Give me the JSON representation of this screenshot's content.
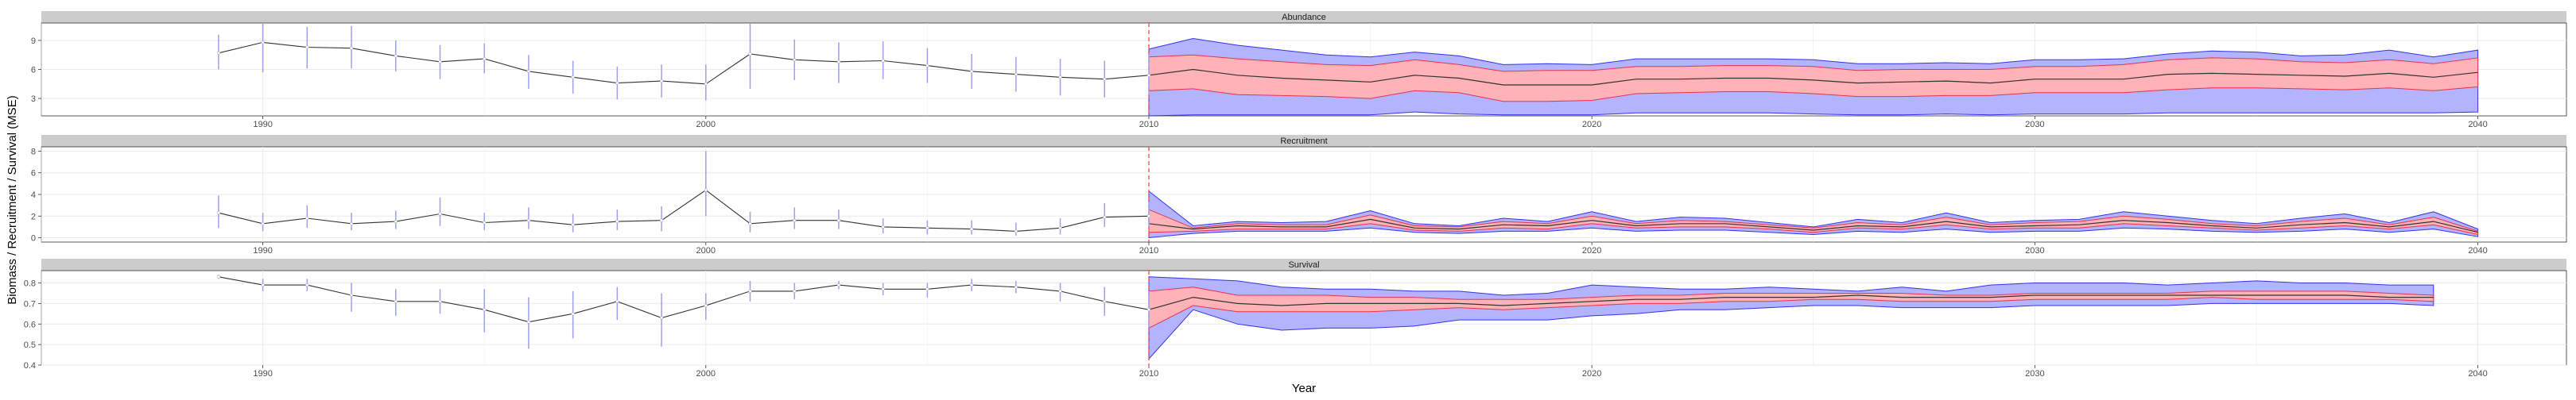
{
  "chart_data": {
    "type": "line",
    "xlabel": "Year",
    "ylabel": "Biomass / Recruitment / Survival (MSE)",
    "xlim": [
      1985,
      2042
    ],
    "xticks": [
      1990,
      2000,
      2010,
      2020,
      2030,
      2040
    ],
    "projection_start": 2010,
    "colors": {
      "strip": "#cccccc",
      "grid": "#ebebeb",
      "outer_band": "#b3b3ff",
      "outer_band_stroke": "#3333ee",
      "inner_band": "#ffb3b8",
      "inner_band_stroke": "#e8334a",
      "median": "#333333",
      "error_bar": "#9f9ff0",
      "vline": "#ff4444"
    },
    "panels": [
      {
        "name": "Abundance",
        "ylim": [
          1.2,
          10.8
        ],
        "yticks": [
          3,
          6,
          9
        ],
        "ytick_labels": [
          "3",
          "6",
          "9"
        ],
        "observed": {
          "years": [
            1989,
            1990,
            1991,
            1992,
            1993,
            1994,
            1995,
            1996,
            1997,
            1998,
            1999,
            2000,
            2001,
            2002,
            2003,
            2004,
            2005,
            2006,
            2007,
            2008,
            2009,
            2010
          ],
          "values": [
            7.7,
            8.8,
            8.3,
            8.2,
            7.4,
            6.8,
            7.1,
            5.8,
            5.2,
            4.6,
            4.8,
            4.5,
            7.6,
            7.0,
            6.8,
            6.9,
            6.4,
            5.8,
            5.5,
            5.2,
            5.0,
            5.4
          ],
          "lower": [
            6.0,
            5.7,
            6.1,
            6.1,
            5.8,
            5.0,
            5.6,
            4.0,
            3.5,
            2.9,
            3.1,
            2.8,
            4.0,
            4.9,
            4.6,
            5.0,
            4.6,
            4.0,
            3.7,
            3.3,
            3.1,
            3.4
          ],
          "upper": [
            9.6,
            10.8,
            10.4,
            10.5,
            9.0,
            8.5,
            8.7,
            7.5,
            6.9,
            6.3,
            6.5,
            6.5,
            10.8,
            9.1,
            8.8,
            8.9,
            8.2,
            7.6,
            7.3,
            7.1,
            6.9,
            7.6
          ]
        },
        "projection": {
          "years": [
            2010,
            2011,
            2012,
            2013,
            2014,
            2015,
            2016,
            2017,
            2018,
            2019,
            2020,
            2021,
            2022,
            2023,
            2024,
            2025,
            2026,
            2027,
            2028,
            2029,
            2030,
            2031,
            2032,
            2033,
            2034,
            2035,
            2036,
            2037,
            2038,
            2039,
            2040
          ],
          "outer_lower": [
            1.2,
            1.3,
            1.3,
            1.3,
            1.3,
            1.3,
            1.6,
            1.4,
            1.3,
            1.3,
            1.3,
            1.5,
            1.5,
            1.5,
            1.5,
            1.4,
            1.3,
            1.3,
            1.4,
            1.3,
            1.4,
            1.4,
            1.4,
            1.5,
            1.5,
            1.5,
            1.5,
            1.5,
            1.5,
            1.5,
            1.6
          ],
          "inner_lower": [
            3.8,
            4.0,
            3.4,
            3.3,
            3.2,
            3.0,
            3.8,
            3.6,
            2.7,
            2.7,
            2.8,
            3.5,
            3.6,
            3.7,
            3.7,
            3.5,
            3.2,
            3.2,
            3.3,
            3.3,
            3.6,
            3.6,
            3.6,
            3.9,
            4.1,
            4.1,
            4.0,
            3.9,
            4.1,
            3.8,
            4.2
          ],
          "median": [
            5.4,
            6.0,
            5.4,
            5.1,
            4.9,
            4.7,
            5.4,
            5.1,
            4.4,
            4.4,
            4.4,
            5.0,
            5.0,
            5.1,
            5.1,
            4.9,
            4.6,
            4.7,
            4.8,
            4.6,
            5.0,
            5.0,
            5.0,
            5.5,
            5.6,
            5.5,
            5.4,
            5.3,
            5.6,
            5.2,
            5.7
          ],
          "inner_upper": [
            7.3,
            7.5,
            7.1,
            6.8,
            6.5,
            6.4,
            7.0,
            6.5,
            5.8,
            5.9,
            5.9,
            6.3,
            6.3,
            6.4,
            6.4,
            6.3,
            5.9,
            6.0,
            6.0,
            6.0,
            6.3,
            6.3,
            6.5,
            7.0,
            7.2,
            7.1,
            6.8,
            6.7,
            7.0,
            6.6,
            7.2
          ],
          "outer_upper": [
            8.1,
            9.2,
            8.5,
            8.0,
            7.5,
            7.3,
            7.8,
            7.4,
            6.5,
            6.6,
            6.5,
            7.1,
            7.1,
            7.1,
            7.1,
            7.0,
            6.6,
            6.6,
            6.7,
            6.6,
            7.0,
            7.0,
            7.1,
            7.6,
            7.9,
            7.8,
            7.4,
            7.5,
            8.0,
            7.3,
            8.0
          ]
        }
      },
      {
        "name": "Recruitment",
        "ylim": [
          -0.4,
          8.4
        ],
        "yticks": [
          0,
          2,
          4,
          6,
          8
        ],
        "ytick_labels": [
          "0",
          "2",
          "4",
          "6",
          "8"
        ],
        "observed": {
          "years": [
            1989,
            1990,
            1991,
            1992,
            1993,
            1994,
            1995,
            1996,
            1997,
            1998,
            1999,
            2000,
            2001,
            2002,
            2003,
            2004,
            2005,
            2006,
            2007,
            2008,
            2009,
            2010
          ],
          "values": [
            2.3,
            1.3,
            1.8,
            1.3,
            1.5,
            2.2,
            1.4,
            1.6,
            1.2,
            1.5,
            1.6,
            4.4,
            1.3,
            1.6,
            1.6,
            1.0,
            0.9,
            0.8,
            0.6,
            0.9,
            1.9,
            2.0
          ],
          "lower": [
            0.9,
            0.6,
            0.9,
            0.7,
            0.8,
            1.1,
            0.7,
            0.8,
            0.5,
            0.7,
            0.6,
            2.0,
            0.5,
            0.8,
            0.8,
            0.4,
            0.3,
            0.3,
            0.2,
            0.3,
            1.0,
            1.0
          ],
          "upper": [
            3.9,
            2.3,
            3.0,
            2.3,
            2.5,
            3.7,
            2.3,
            2.8,
            2.2,
            2.6,
            2.9,
            8.0,
            2.4,
            2.8,
            2.6,
            1.8,
            1.6,
            1.6,
            1.4,
            1.8,
            3.2,
            3.3
          ]
        },
        "projection": {
          "years": [
            2010,
            2011,
            2012,
            2013,
            2014,
            2015,
            2016,
            2017,
            2018,
            2019,
            2020,
            2021,
            2022,
            2023,
            2024,
            2025,
            2026,
            2027,
            2028,
            2029,
            2030,
            2031,
            2032,
            2033,
            2034,
            2035,
            2036,
            2037,
            2038,
            2039,
            2040
          ],
          "outer_lower": [
            0.0,
            0.4,
            0.6,
            0.6,
            0.6,
            0.9,
            0.5,
            0.4,
            0.6,
            0.6,
            0.9,
            0.6,
            0.7,
            0.7,
            0.5,
            0.3,
            0.6,
            0.5,
            0.8,
            0.5,
            0.6,
            0.6,
            0.9,
            0.8,
            0.6,
            0.5,
            0.6,
            0.8,
            0.5,
            0.8,
            0.1
          ],
          "inner_lower": [
            0.5,
            0.6,
            0.8,
            0.8,
            0.8,
            1.3,
            0.7,
            0.6,
            0.9,
            0.8,
            1.3,
            0.9,
            1.0,
            1.0,
            0.8,
            0.5,
            0.9,
            0.8,
            1.2,
            0.8,
            0.9,
            0.9,
            1.3,
            1.1,
            0.9,
            0.7,
            0.9,
            1.1,
            0.8,
            1.2,
            0.3
          ],
          "median": [
            1.3,
            0.8,
            1.1,
            1.0,
            1.0,
            1.7,
            0.9,
            0.8,
            1.2,
            1.1,
            1.6,
            1.1,
            1.3,
            1.3,
            1.0,
            0.7,
            1.1,
            1.0,
            1.5,
            1.0,
            1.1,
            1.2,
            1.6,
            1.4,
            1.1,
            0.9,
            1.2,
            1.4,
            1.0,
            1.5,
            0.5
          ],
          "inner_upper": [
            2.6,
            0.9,
            1.3,
            1.2,
            1.2,
            2.1,
            1.1,
            1.0,
            1.5,
            1.3,
            2.0,
            1.3,
            1.6,
            1.5,
            1.2,
            0.9,
            1.4,
            1.2,
            1.9,
            1.2,
            1.4,
            1.5,
            2.0,
            1.7,
            1.3,
            1.1,
            1.5,
            1.8,
            1.2,
            1.9,
            0.6
          ],
          "outer_upper": [
            4.3,
            1.1,
            1.5,
            1.4,
            1.5,
            2.5,
            1.3,
            1.1,
            1.8,
            1.5,
            2.4,
            1.5,
            1.9,
            1.8,
            1.4,
            1.0,
            1.7,
            1.4,
            2.3,
            1.4,
            1.6,
            1.7,
            2.4,
            2.0,
            1.6,
            1.3,
            1.8,
            2.2,
            1.4,
            2.4,
            0.8
          ]
        }
      },
      {
        "name": "Survival",
        "ylim": [
          0.4,
          0.86
        ],
        "yticks": [
          0.4,
          0.5,
          0.6,
          0.7,
          0.8
        ],
        "ytick_labels": [
          "0.4",
          "0.5",
          "0.6",
          "0.7",
          "0.8"
        ],
        "observed": {
          "years": [
            1989,
            1990,
            1991,
            1992,
            1993,
            1994,
            1995,
            1996,
            1997,
            1998,
            1999,
            2000,
            2001,
            2002,
            2003,
            2004,
            2005,
            2006,
            2007,
            2008,
            2009,
            2010
          ],
          "values": [
            0.83,
            0.79,
            0.79,
            0.74,
            0.71,
            0.71,
            0.67,
            0.61,
            0.65,
            0.71,
            0.63,
            0.69,
            0.76,
            0.76,
            0.79,
            0.77,
            0.77,
            0.79,
            0.78,
            0.76,
            0.71,
            0.67
          ],
          "lower": [
            0.82,
            0.76,
            0.76,
            0.66,
            0.64,
            0.65,
            0.56,
            0.48,
            0.53,
            0.62,
            0.49,
            0.62,
            0.71,
            0.72,
            0.77,
            0.74,
            0.73,
            0.76,
            0.75,
            0.71,
            0.64,
            0.58
          ],
          "upper": [
            0.84,
            0.82,
            0.82,
            0.8,
            0.77,
            0.77,
            0.77,
            0.73,
            0.76,
            0.78,
            0.75,
            0.75,
            0.81,
            0.8,
            0.81,
            0.8,
            0.8,
            0.82,
            0.81,
            0.8,
            0.78,
            0.76
          ]
        },
        "projection": {
          "years": [
            2010,
            2011,
            2012,
            2013,
            2014,
            2015,
            2016,
            2017,
            2018,
            2019,
            2020,
            2021,
            2022,
            2023,
            2024,
            2025,
            2026,
            2027,
            2028,
            2029,
            2030,
            2031,
            2032,
            2033,
            2034,
            2035,
            2036,
            2037,
            2038,
            2039
          ],
          "outer_lower": [
            0.43,
            0.67,
            0.6,
            0.57,
            0.58,
            0.58,
            0.59,
            0.62,
            0.62,
            0.62,
            0.64,
            0.65,
            0.67,
            0.67,
            0.68,
            0.69,
            0.69,
            0.68,
            0.68,
            0.68,
            0.69,
            0.69,
            0.69,
            0.69,
            0.7,
            0.7,
            0.7,
            0.7,
            0.7,
            0.69
          ],
          "inner_lower": [
            0.58,
            0.69,
            0.66,
            0.66,
            0.66,
            0.66,
            0.67,
            0.68,
            0.67,
            0.68,
            0.69,
            0.7,
            0.7,
            0.71,
            0.71,
            0.72,
            0.72,
            0.71,
            0.71,
            0.71,
            0.72,
            0.72,
            0.72,
            0.72,
            0.73,
            0.72,
            0.72,
            0.72,
            0.72,
            0.71
          ],
          "median": [
            0.67,
            0.73,
            0.7,
            0.69,
            0.7,
            0.7,
            0.7,
            0.7,
            0.69,
            0.7,
            0.71,
            0.72,
            0.72,
            0.73,
            0.73,
            0.73,
            0.74,
            0.73,
            0.73,
            0.73,
            0.74,
            0.74,
            0.74,
            0.74,
            0.74,
            0.74,
            0.74,
            0.74,
            0.73,
            0.73
          ],
          "inner_upper": [
            0.76,
            0.78,
            0.74,
            0.74,
            0.74,
            0.73,
            0.73,
            0.72,
            0.72,
            0.72,
            0.73,
            0.74,
            0.74,
            0.75,
            0.75,
            0.75,
            0.75,
            0.75,
            0.74,
            0.74,
            0.75,
            0.75,
            0.75,
            0.75,
            0.76,
            0.76,
            0.76,
            0.76,
            0.75,
            0.74
          ],
          "outer_upper": [
            0.83,
            0.82,
            0.81,
            0.78,
            0.77,
            0.77,
            0.76,
            0.76,
            0.74,
            0.75,
            0.79,
            0.78,
            0.77,
            0.77,
            0.78,
            0.77,
            0.76,
            0.78,
            0.76,
            0.79,
            0.8,
            0.8,
            0.8,
            0.79,
            0.8,
            0.81,
            0.8,
            0.8,
            0.79,
            0.79
          ]
        }
      }
    ]
  }
}
